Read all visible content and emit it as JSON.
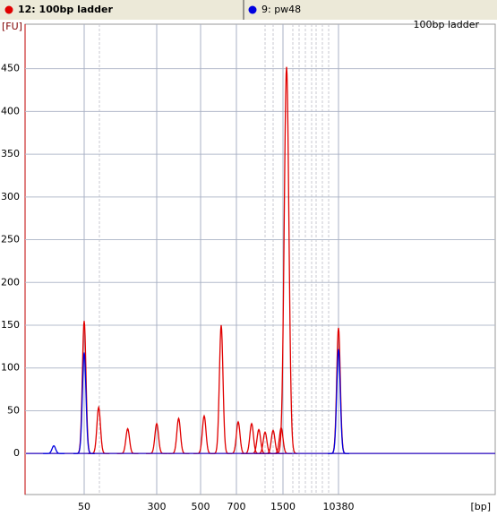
{
  "chart_data": {
    "type": "electropherogram",
    "annotation": "100bp ladder",
    "y_label": "[FU]",
    "x_label": "[bp]",
    "xlim": [
      15,
      15000
    ],
    "xticks": [
      50,
      300,
      500,
      700,
      1500,
      10380
    ],
    "ylim": [
      -48,
      502
    ],
    "yticks": [
      0,
      50,
      100,
      150,
      200,
      250,
      300,
      350,
      400,
      450
    ],
    "grid": true,
    "series": [
      {
        "name": "12: 100bp ladder",
        "color": "#e00000",
        "x": [
          50,
          100,
          200,
          300,
          400,
          520,
          615,
          731,
          962,
          1085,
          1192,
          1331,
          1469,
          2073,
          10380
        ],
        "values": [
          155,
          54,
          29,
          35,
          41,
          44,
          150,
          37,
          35,
          28,
          25,
          27,
          30,
          452,
          147
        ]
      },
      {
        "name": "9: pw48",
        "color": "#0000e0",
        "x": [
          32,
          50,
          10380
        ],
        "values": [
          9,
          118,
          122
        ]
      }
    ]
  }
}
